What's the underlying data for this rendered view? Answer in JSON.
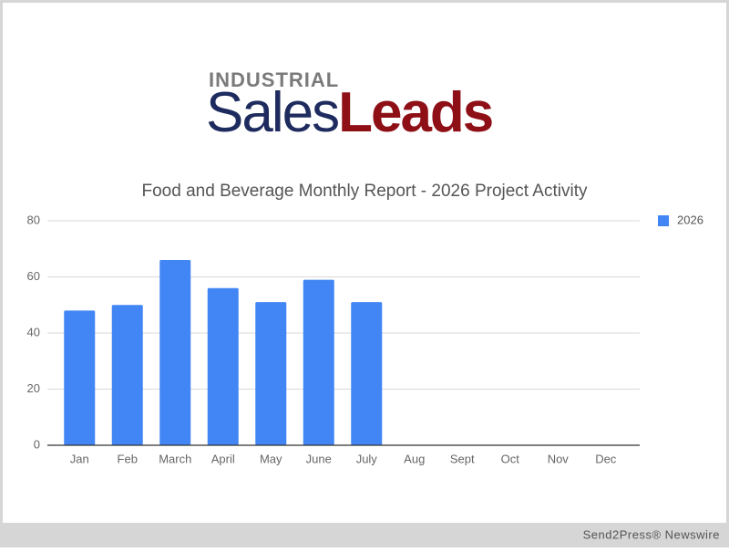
{
  "logo": {
    "top": "INDUSTRIAL",
    "first": "Sales",
    "second": "Leads"
  },
  "chart_data": {
    "type": "bar",
    "title": "Food and Beverage Monthly Report - 2026 Project Activity",
    "categories": [
      "Jan",
      "Feb",
      "March",
      "April",
      "May",
      "June",
      "July",
      "Aug",
      "Sept",
      "Oct",
      "Nov",
      "Dec"
    ],
    "series": [
      {
        "name": "2026",
        "color": "#4285f4",
        "values": [
          48,
          50,
          66,
          56,
          51,
          59,
          51,
          null,
          null,
          null,
          null,
          null
        ]
      }
    ],
    "ylim": [
      0,
      80
    ],
    "yticks": [
      0,
      20,
      40,
      60,
      80
    ],
    "grid": true,
    "legend": "right"
  },
  "footer": "Send2Press® Newswire"
}
